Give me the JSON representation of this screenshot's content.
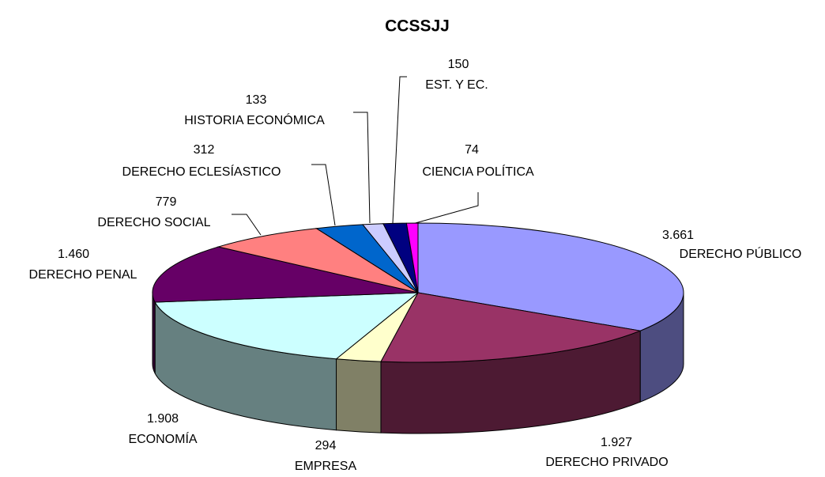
{
  "chart_data": {
    "type": "pie",
    "title": "CCSSJJ",
    "categories": [
      "DERECHO PÚBLICO",
      "DERECHO PRIVADO",
      "EMPRESA",
      "ECONOMÍA",
      "DERECHO PENAL",
      "DERECHO SOCIAL",
      "DERECHO ECLESÍASTICO",
      "HISTORIA ECONÓMICA",
      "EST. Y EC.",
      "CIENCIA POLÍTICA"
    ],
    "values": [
      3661,
      1927,
      294,
      1908,
      1460,
      779,
      312,
      133,
      150,
      74
    ],
    "value_labels": [
      "3.661",
      "1.927",
      "294",
      "1.908",
      "1.460",
      "779",
      "312",
      "133",
      "150",
      "74"
    ],
    "colors": [
      "#9999ff",
      "#993366",
      "#ffffcc",
      "#ccffff",
      "#660066",
      "#ff8080",
      "#0066cc",
      "#ccccff",
      "#000080",
      "#ff00ff"
    ]
  }
}
